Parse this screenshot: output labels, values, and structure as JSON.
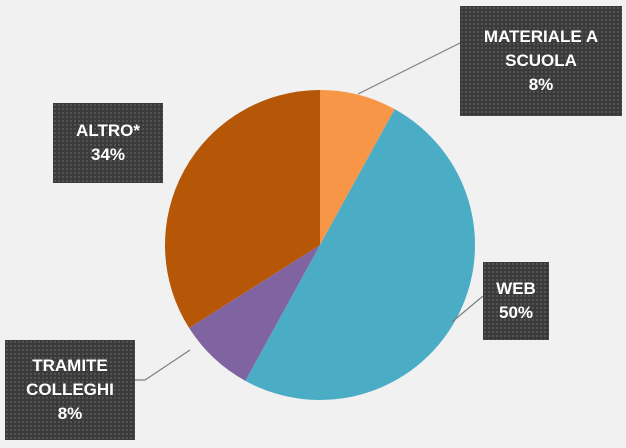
{
  "chart_data": {
    "type": "pie",
    "categories": [
      "MATERIALE A SCUOLA",
      "WEB",
      "TRAMITE COLLEGHI",
      "ALTRO*"
    ],
    "values": [
      8,
      50,
      8,
      34
    ],
    "value_labels": [
      "8%",
      "50%",
      "8%",
      "34%"
    ],
    "colors": [
      "#f79646",
      "#4bacc6",
      "#8064a2",
      "#b65708"
    ]
  }
}
